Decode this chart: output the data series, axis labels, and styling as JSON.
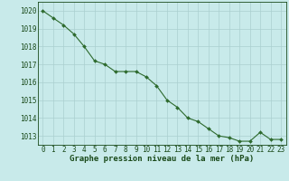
{
  "x": [
    0,
    1,
    2,
    3,
    4,
    5,
    6,
    7,
    8,
    9,
    10,
    11,
    12,
    13,
    14,
    15,
    16,
    17,
    18,
    19,
    20,
    21,
    22,
    23
  ],
  "y": [
    1020.0,
    1019.6,
    1019.2,
    1018.7,
    1018.0,
    1017.2,
    1017.0,
    1016.6,
    1016.6,
    1016.6,
    1016.3,
    1015.8,
    1015.0,
    1014.6,
    1014.0,
    1013.8,
    1013.4,
    1013.0,
    1012.9,
    1012.7,
    1012.7,
    1013.2,
    1012.8,
    1012.8
  ],
  "line_color": "#2d6a2d",
  "marker": "D",
  "marker_size": 2.0,
  "bg_color": "#c8eaea",
  "grid_color": "#aacfcf",
  "xlabel": "Graphe pression niveau de la mer (hPa)",
  "xlabel_color": "#1a4a1a",
  "tick_color": "#1a4a1a",
  "ylim_min": 1012.5,
  "ylim_max": 1020.5,
  "yticks": [
    1013,
    1014,
    1015,
    1016,
    1017,
    1018,
    1019,
    1020
  ],
  "font_size_label": 6.5,
  "font_size_tick": 5.5
}
